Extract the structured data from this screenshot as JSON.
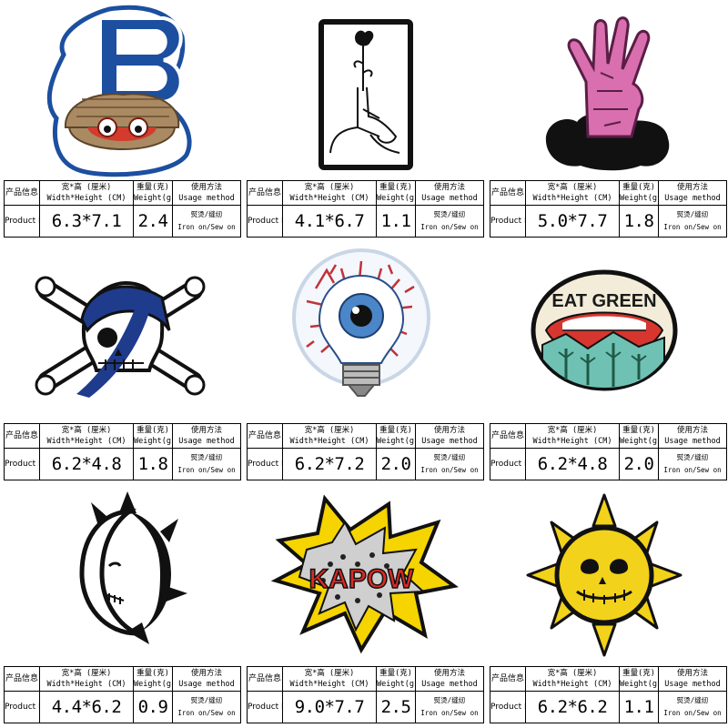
{
  "table_labels": {
    "name_cn": "产品信息",
    "name_en": "Product Data",
    "size_cn": "宽*高 (厘米)",
    "size_en": "Width*Height (CM)",
    "weight_cn": "重量(克)",
    "weight_en": "Weight(g)",
    "usage_cn": "使用方法",
    "usage_en": "Usage method"
  },
  "products": [
    {
      "patch": "letter-b-oyster-patch",
      "size": "6.3*7.1",
      "weight": "2.4",
      "usage_cn": "熨烫/缝纫",
      "usage_en": "Iron on/Sew on"
    },
    {
      "patch": "rose-hand-patch",
      "size": "4.1*6.7",
      "weight": "1.1",
      "usage_cn": "熨烫/缝纫",
      "usage_en": "Iron on/Sew on"
    },
    {
      "patch": "zombie-hand-patch",
      "size": "5.0*7.7",
      "weight": "1.8",
      "usage_cn": "熨烫/缝纫",
      "usage_en": "Iron on/Sew on"
    },
    {
      "patch": "pirate-skull-patch",
      "size": "6.2*4.8",
      "weight": "1.8",
      "usage_cn": "熨烫/缝纫",
      "usage_en": "Iron on/Sew on"
    },
    {
      "patch": "eyeball-bulb-patch",
      "size": "6.2*7.2",
      "weight": "2.0",
      "usage_cn": "熨烫/缝纫",
      "usage_en": "Iron on/Sew on"
    },
    {
      "patch": "eat-green-patch",
      "text": "EAT GREEN",
      "size": "6.2*4.8",
      "weight": "2.0",
      "usage_cn": "熨烫/缝纫",
      "usage_en": "Iron on/Sew on"
    },
    {
      "patch": "spiky-moon-patch",
      "size": "4.4*6.2",
      "weight": "0.9",
      "usage_cn": "熨烫/缝纫",
      "usage_en": "Iron on/Sew on"
    },
    {
      "patch": "kapow-patch",
      "text": "KAPOW",
      "size": "9.0*7.7",
      "weight": "2.5",
      "usage_cn": "熨烫/缝纫",
      "usage_en": "Iron on/Sew on"
    },
    {
      "patch": "smiley-sun-patch",
      "size": "6.2*6.2",
      "weight": "1.1",
      "usage_cn": "熨烫/缝纫",
      "usage_en": "Iron on/Sew on"
    }
  ]
}
